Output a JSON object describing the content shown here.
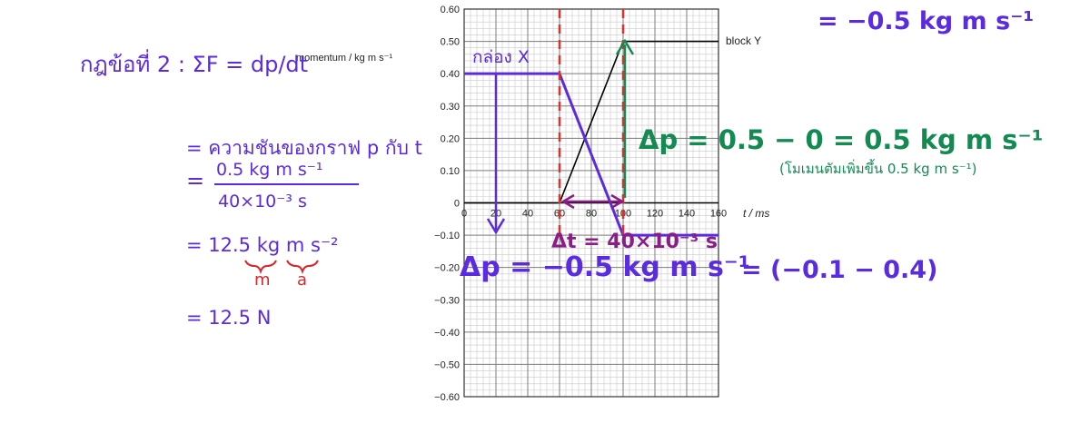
{
  "chart_data": {
    "type": "line",
    "ylabel": "momentum / kg m s⁻¹",
    "xlabel": "t / ms",
    "xlim": [
      0,
      160
    ],
    "ylim": [
      -0.6,
      0.6
    ],
    "grid": true,
    "x_ticks": [
      "0",
      "20",
      "40",
      "60",
      "80",
      "100",
      "120",
      "140",
      "160"
    ],
    "y_ticks": [
      "0.60",
      "0.50",
      "0.40",
      "0.30",
      "0.20",
      "0.10",
      "0",
      "−0.10",
      "−0.20",
      "−0.30",
      "−0.40",
      "−0.50",
      "−0.60"
    ],
    "series": [
      {
        "name": "block Y",
        "color": "#000000",
        "x": [
          0,
          60,
          100,
          160
        ],
        "y": [
          0,
          0,
          0.5,
          0.5
        ]
      },
      {
        "name": "กล่อง X",
        "color": "#5a2be0",
        "x": [
          0,
          60,
          100,
          160
        ],
        "y": [
          0.4,
          0.4,
          -0.1,
          -0.1
        ]
      }
    ],
    "markers": {
      "color": "#e0302a",
      "x": [
        60,
        100
      ]
    }
  },
  "annotations": {
    "left_title": "กฎข้อที่ 2 :  ΣF = dp/dt",
    "slope_text": "= ความชันของกราฟ p กับ t",
    "fraction_num": "0.5  kg m s⁻¹",
    "fraction_den": "40×10⁻³  s",
    "step_accel": "= 12.5  kg m s⁻²",
    "label_m": "m",
    "label_a": "a",
    "step_newton": "= 12.5  N",
    "top_right": "= −0.5  kg m s⁻¹",
    "green_dp": "Δp = 0.5 − 0 = 0.5 kg m s⁻¹",
    "green_note": "(โมเมนตัมเพิ่มขึ้น 0.5 kg m s⁻¹)",
    "delta_t": "Δt = 40×10⁻³ s",
    "purple_dp": "Δp = −0.5  kg m s⁻¹",
    "purple_tail": "= (−0.1 − 0.4)",
    "colors": {
      "purple": "#5a2be0",
      "green": "#138a52",
      "red": "#d8262b",
      "magenta": "#8a1e86"
    }
  }
}
